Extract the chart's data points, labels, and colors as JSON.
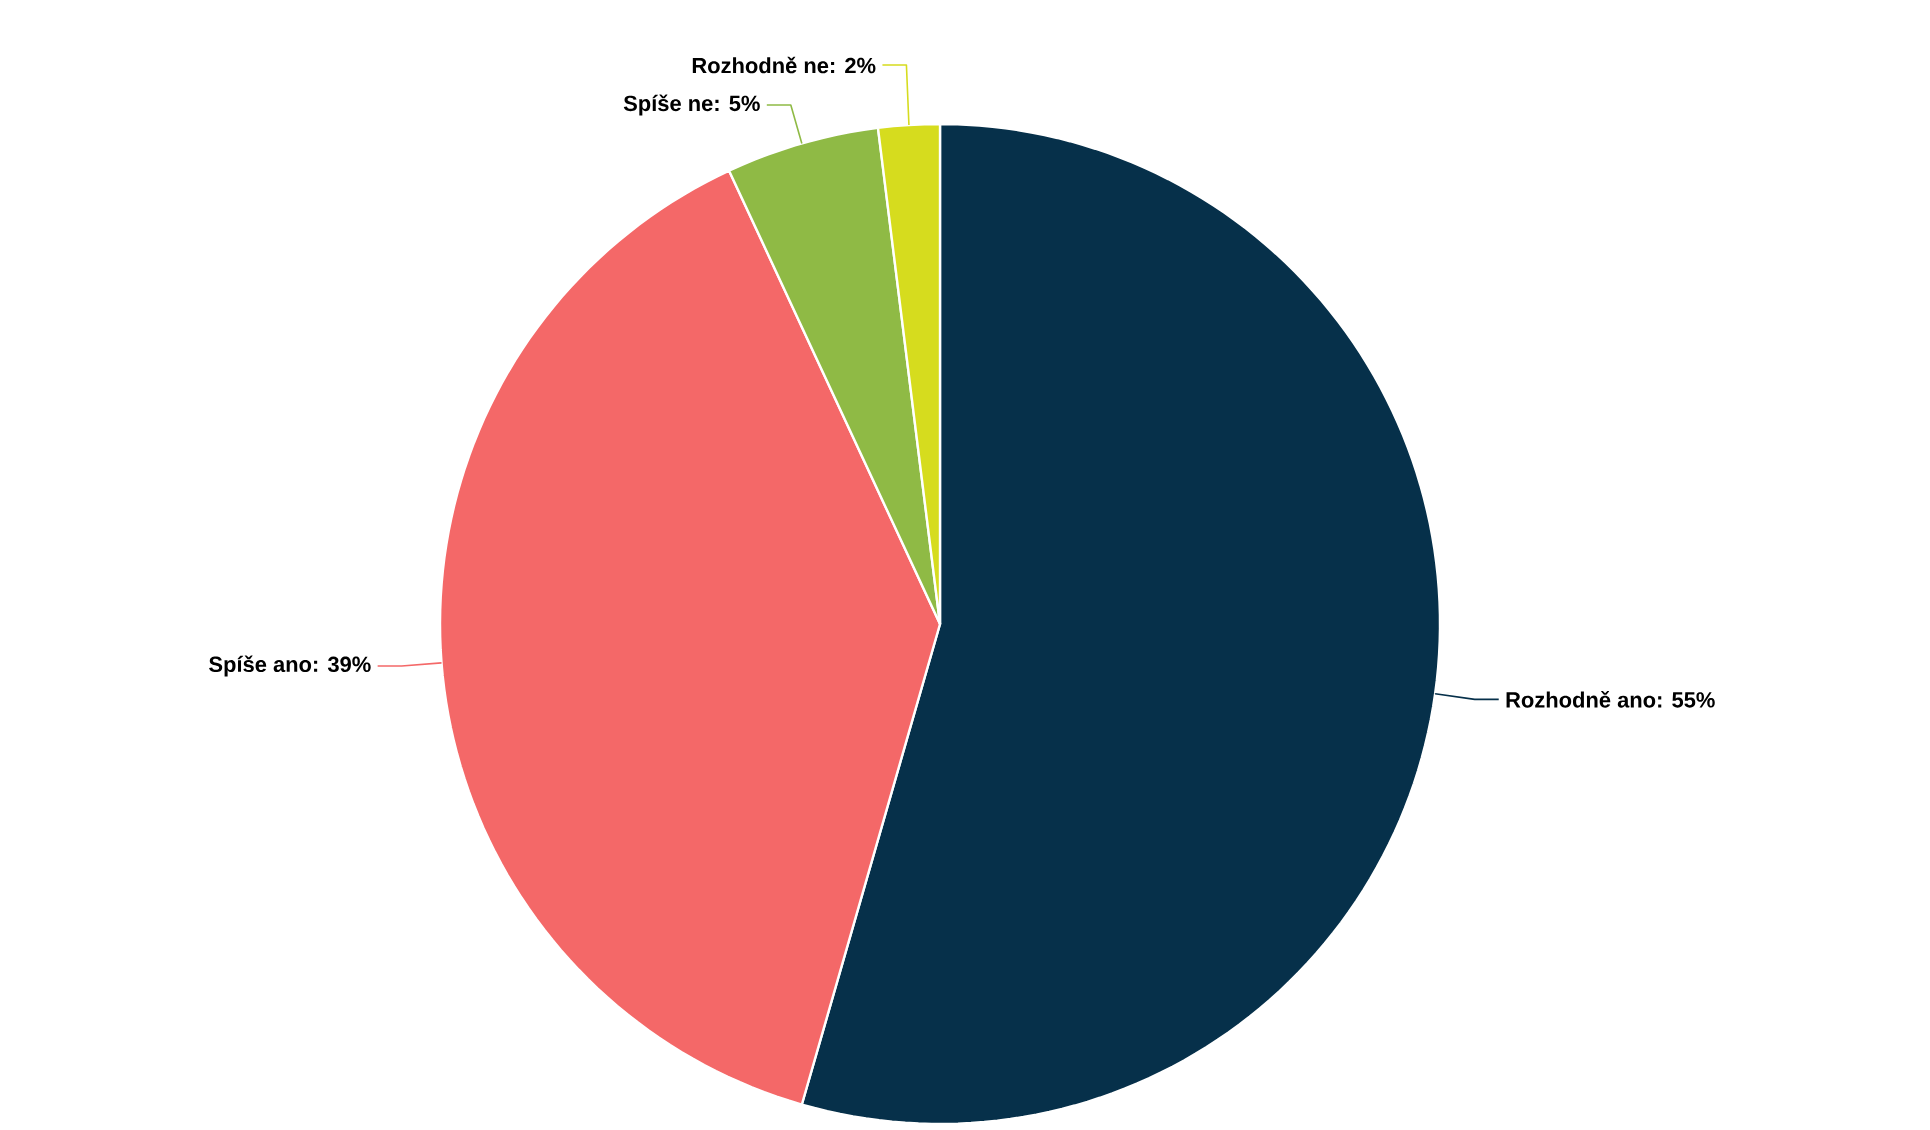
{
  "chart_data": {
    "type": "pie",
    "categories": [
      null,
      null,
      null,
      null
    ],
    "values": [
      55,
      39,
      5,
      2
    ],
    "value_labels": [
      "Rozhodně ano: 55%",
      "Spíše ano: 39%",
      "Spíše ne: 5%",
      "Rozhodně ne: 2%"
    ],
    "colors": [
      "#06304a",
      "#f46868",
      "#8fba45",
      "#d6dc1e"
    ]
  }
}
